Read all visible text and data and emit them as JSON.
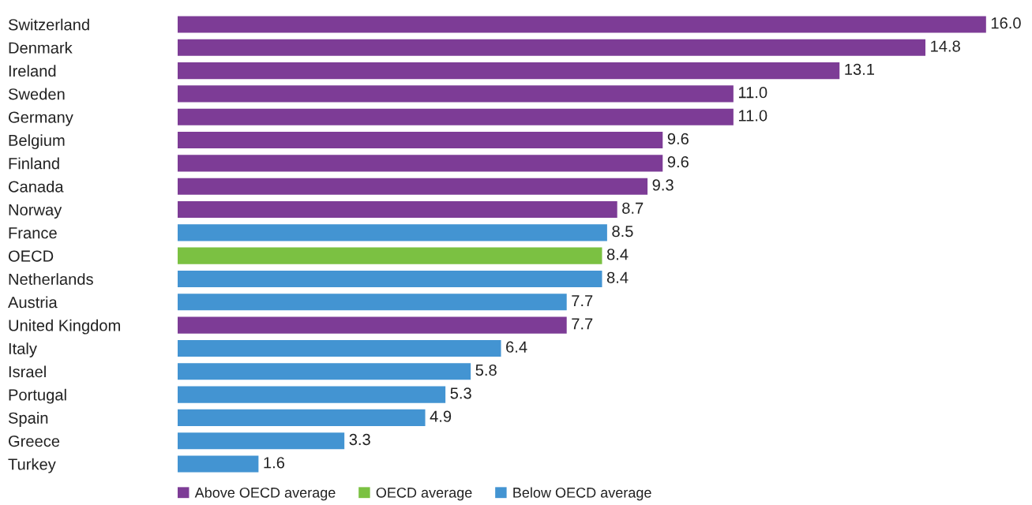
{
  "chart_data": {
    "type": "bar",
    "orientation": "horizontal",
    "stacked": true,
    "legend": "bottom",
    "tick_labels": "y",
    "categories": [
      "Switzerland",
      "Denmark",
      "Ireland",
      "Sweden",
      "Germany",
      "Belgium",
      "Finland",
      "Canada",
      "Norway",
      "France",
      "OECD",
      "Netherlands",
      "Austria",
      "United Kingdom",
      "Italy",
      "Israel",
      "Portugal",
      "Spain",
      "Greece",
      "Turkey"
    ],
    "series": [
      {
        "name": "Above OECD average",
        "color": "#7d3c96",
        "values": [
          16.0,
          14.8,
          13.1,
          11.0,
          11.0,
          9.6,
          9.6,
          9.3,
          8.7,
          null,
          null,
          null,
          null,
          7.7,
          null,
          null,
          null,
          null,
          null,
          null
        ],
        "value_labels": [
          "16.0",
          "14.8",
          "13.1",
          "11.0",
          "11.0",
          "9.6",
          "9.6",
          "9.3",
          "8.7",
          null,
          null,
          null,
          null,
          "7.7",
          null,
          null,
          null,
          null,
          null,
          null
        ]
      },
      {
        "name": "OECD average",
        "color": "#7bc142",
        "values": [
          null,
          null,
          null,
          null,
          null,
          null,
          null,
          null,
          null,
          null,
          8.4,
          null,
          null,
          null,
          null,
          null,
          null,
          null,
          null,
          null
        ],
        "value_labels": [
          null,
          null,
          null,
          null,
          null,
          null,
          null,
          null,
          null,
          null,
          "8.4",
          null,
          null,
          null,
          null,
          null,
          null,
          null,
          null,
          null
        ]
      },
      {
        "name": "Below OECD average",
        "color": "#4394d2",
        "values": [
          null,
          null,
          null,
          null,
          null,
          null,
          null,
          null,
          null,
          8.5,
          null,
          8.4,
          7.7,
          null,
          6.4,
          5.8,
          5.3,
          4.9,
          3.3,
          1.6
        ],
        "value_labels": [
          null,
          null,
          null,
          null,
          null,
          null,
          null,
          null,
          null,
          "8.5",
          null,
          "8.4",
          "7.7",
          null,
          "6.4",
          "5.8",
          "5.3",
          "4.9",
          "3.3",
          "1.6"
        ]
      }
    ]
  }
}
